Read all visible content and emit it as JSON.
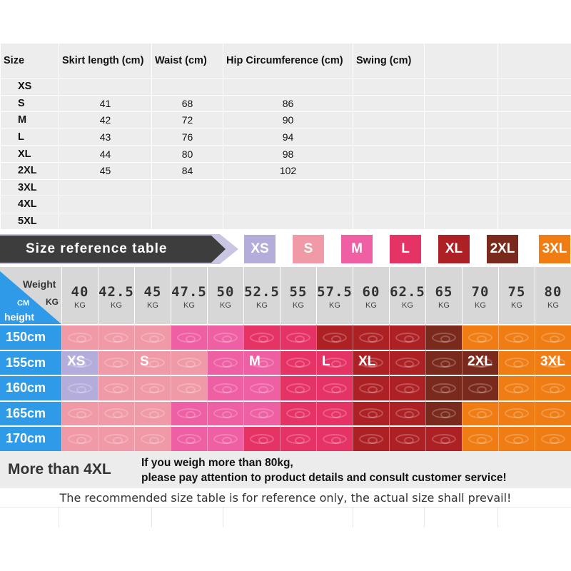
{
  "measurements": {
    "headers": [
      "Size",
      "Skirt length (cm)",
      "Waist (cm)",
      "Hip Circumference (cm)",
      "Swing (cm)"
    ],
    "rows": [
      [
        "XS",
        "",
        "",
        "",
        ""
      ],
      [
        "S",
        "41",
        "68",
        "86",
        ""
      ],
      [
        "M",
        "42",
        "72",
        "90",
        ""
      ],
      [
        "L",
        "43",
        "76",
        "94",
        ""
      ],
      [
        "XL",
        "44",
        "80",
        "98",
        ""
      ],
      [
        "2XL",
        "45",
        "84",
        "102",
        ""
      ],
      [
        "3XL",
        "",
        "",
        "",
        ""
      ],
      [
        "4XL",
        "",
        "",
        "",
        ""
      ],
      [
        "5XL",
        "",
        "",
        "",
        ""
      ]
    ]
  },
  "reference": {
    "title": "Size reference table",
    "sizes": [
      {
        "label": "XS",
        "color": "#b4addc"
      },
      {
        "label": "S",
        "color": "#f09aa7"
      },
      {
        "label": "M",
        "color": "#ee5fa3"
      },
      {
        "label": "L",
        "color": "#e63366"
      },
      {
        "label": "XL",
        "color": "#ad2125"
      },
      {
        "label": "2XL",
        "color": "#7a2a1c"
      },
      {
        "label": "3XL",
        "color": "#ef7d14"
      }
    ]
  },
  "chart": {
    "corner": {
      "weight": "Weight",
      "kg": "KG",
      "cm": "CM",
      "height": "height"
    },
    "weight_unit": "KG",
    "weights": [
      "40",
      "42.5",
      "45",
      "47.5",
      "50",
      "52.5",
      "55",
      "57.5",
      "60",
      "62.5",
      "65",
      "70",
      "75",
      "80"
    ],
    "heights": [
      "150cm",
      "155cm",
      "160cm",
      "165cm",
      "170cm"
    ],
    "grid": [
      [
        "S",
        "S",
        "S",
        "M",
        "M",
        "L",
        "L",
        "XL",
        "XL",
        "XL",
        "2XL",
        "3XL",
        "3XL",
        "3XL"
      ],
      [
        "XS",
        "S",
        "S",
        "S",
        "M",
        "M",
        "L",
        "L",
        "XL",
        "XL",
        "2XL",
        "2XL",
        "3XL",
        "3XL"
      ],
      [
        "XS",
        "S",
        "S",
        "S",
        "M",
        "M",
        "L",
        "L",
        "XL",
        "XL",
        "2XL",
        "2XL",
        "3XL",
        "3XL"
      ],
      [
        "S",
        "S",
        "S",
        "M",
        "M",
        "M",
        "L",
        "L",
        "XL",
        "XL",
        "2XL",
        "3XL",
        "3XL",
        "3XL"
      ],
      [
        "S",
        "S",
        "S",
        "M",
        "M",
        "L",
        "L",
        "L",
        "XL",
        "XL",
        "XL",
        "3XL",
        "3XL",
        "3XL"
      ]
    ],
    "row_labels": [
      {
        "text": "XS",
        "col": 0
      },
      {
        "text": "S",
        "col": 2
      },
      {
        "text": "M",
        "col": 5
      },
      {
        "text": "L",
        "col": 7
      },
      {
        "text": "XL",
        "col": 8
      },
      {
        "text": "2XL",
        "col": 11
      },
      {
        "text": "3XL",
        "col": 13
      }
    ]
  },
  "footer": {
    "more_label": "More than 4XL",
    "notice_line1": "If you weigh more than 80kg,",
    "notice_line2": "please pay attention to product details and consult customer service!",
    "disclaimer": "The recommended size table is for reference only, the actual size shall prevail!"
  }
}
